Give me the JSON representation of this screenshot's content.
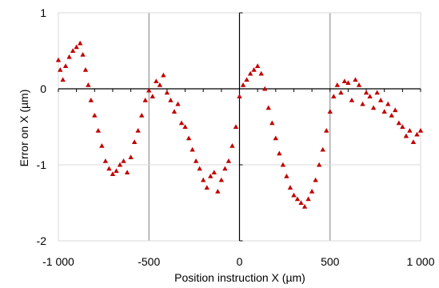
{
  "chart_data": {
    "type": "scatter",
    "title": "",
    "xlabel": "Position instruction X (µm)",
    "ylabel": "Error on X (µm)",
    "xlim": [
      -1000,
      1000
    ],
    "ylim": [
      -2,
      1
    ],
    "x_ticks": [
      -1000,
      -500,
      0,
      500,
      1000
    ],
    "x_tick_labels": [
      "-1 000",
      "-500",
      "0",
      "500",
      "1 000"
    ],
    "y_ticks": [
      -2,
      -1,
      0,
      1
    ],
    "y_tick_labels": [
      "-2",
      "-1",
      "0",
      "1"
    ],
    "grid": true,
    "legend": "none",
    "marker": "triangle",
    "marker_color": "#C00000",
    "series": [
      {
        "points": [
          {
            "x": -1000,
            "y": 0.38
          },
          {
            "x": -990,
            "y": 0.25
          },
          {
            "x": -975,
            "y": 0.12
          },
          {
            "x": -960,
            "y": 0.3
          },
          {
            "x": -940,
            "y": 0.42
          },
          {
            "x": -920,
            "y": 0.5
          },
          {
            "x": -900,
            "y": 0.55
          },
          {
            "x": -880,
            "y": 0.6
          },
          {
            "x": -865,
            "y": 0.45
          },
          {
            "x": -850,
            "y": 0.25
          },
          {
            "x": -835,
            "y": 0.05
          },
          {
            "x": -820,
            "y": -0.15
          },
          {
            "x": -800,
            "y": -0.35
          },
          {
            "x": -780,
            "y": -0.55
          },
          {
            "x": -760,
            "y": -0.75
          },
          {
            "x": -740,
            "y": -0.95
          },
          {
            "x": -720,
            "y": -1.05
          },
          {
            "x": -700,
            "y": -1.12
          },
          {
            "x": -680,
            "y": -1.08
          },
          {
            "x": -660,
            "y": -1.0
          },
          {
            "x": -640,
            "y": -0.95
          },
          {
            "x": -620,
            "y": -1.1
          },
          {
            "x": -600,
            "y": -0.9
          },
          {
            "x": -580,
            "y": -0.7
          },
          {
            "x": -560,
            "y": -0.55
          },
          {
            "x": -540,
            "y": -0.35
          },
          {
            "x": -520,
            "y": -0.15
          },
          {
            "x": -500,
            "y": -0.02
          },
          {
            "x": -480,
            "y": -0.1
          },
          {
            "x": -460,
            "y": 0.1
          },
          {
            "x": -440,
            "y": 0.05
          },
          {
            "x": -420,
            "y": 0.18
          },
          {
            "x": -400,
            "y": -0.05
          },
          {
            "x": -380,
            "y": -0.15
          },
          {
            "x": -360,
            "y": -0.3
          },
          {
            "x": -340,
            "y": -0.2
          },
          {
            "x": -320,
            "y": -0.45
          },
          {
            "x": -300,
            "y": -0.5
          },
          {
            "x": -280,
            "y": -0.65
          },
          {
            "x": -260,
            "y": -0.8
          },
          {
            "x": -240,
            "y": -0.95
          },
          {
            "x": -220,
            "y": -1.05
          },
          {
            "x": -200,
            "y": -1.2
          },
          {
            "x": -180,
            "y": -1.3
          },
          {
            "x": -160,
            "y": -1.15
          },
          {
            "x": -140,
            "y": -1.1
          },
          {
            "x": -120,
            "y": -1.35
          },
          {
            "x": -100,
            "y": -1.2
          },
          {
            "x": -80,
            "y": -1.05
          },
          {
            "x": -60,
            "y": -0.95
          },
          {
            "x": -40,
            "y": -0.75
          },
          {
            "x": -20,
            "y": -0.5
          },
          {
            "x": 0,
            "y": -0.1
          },
          {
            "x": 20,
            "y": 0.05
          },
          {
            "x": 40,
            "y": 0.12
          },
          {
            "x": 60,
            "y": 0.2
          },
          {
            "x": 80,
            "y": 0.25
          },
          {
            "x": 100,
            "y": 0.3
          },
          {
            "x": 120,
            "y": 0.2
          },
          {
            "x": 140,
            "y": 0.0
          },
          {
            "x": 160,
            "y": -0.25
          },
          {
            "x": 180,
            "y": -0.45
          },
          {
            "x": 200,
            "y": -0.65
          },
          {
            "x": 220,
            "y": -0.85
          },
          {
            "x": 240,
            "y": -1.0
          },
          {
            "x": 260,
            "y": -1.15
          },
          {
            "x": 280,
            "y": -1.3
          },
          {
            "x": 300,
            "y": -1.4
          },
          {
            "x": 320,
            "y": -1.45
          },
          {
            "x": 340,
            "y": -1.5
          },
          {
            "x": 360,
            "y": -1.55
          },
          {
            "x": 380,
            "y": -1.45
          },
          {
            "x": 400,
            "y": -1.35
          },
          {
            "x": 420,
            "y": -1.2
          },
          {
            "x": 440,
            "y": -1.0
          },
          {
            "x": 460,
            "y": -0.8
          },
          {
            "x": 480,
            "y": -0.55
          },
          {
            "x": 500,
            "y": -0.3
          },
          {
            "x": 520,
            "y": -0.1
          },
          {
            "x": 540,
            "y": 0.05
          },
          {
            "x": 560,
            "y": -0.05
          },
          {
            "x": 580,
            "y": 0.1
          },
          {
            "x": 600,
            "y": 0.08
          },
          {
            "x": 620,
            "y": -0.15
          },
          {
            "x": 640,
            "y": 0.12
          },
          {
            "x": 660,
            "y": 0.05
          },
          {
            "x": 680,
            "y": -0.2
          },
          {
            "x": 700,
            "y": -0.05
          },
          {
            "x": 720,
            "y": -0.1
          },
          {
            "x": 740,
            "y": -0.25
          },
          {
            "x": 760,
            "y": -0.05
          },
          {
            "x": 780,
            "y": -0.15
          },
          {
            "x": 800,
            "y": -0.3
          },
          {
            "x": 820,
            "y": -0.2
          },
          {
            "x": 840,
            "y": -0.35
          },
          {
            "x": 860,
            "y": -0.28
          },
          {
            "x": 880,
            "y": -0.45
          },
          {
            "x": 900,
            "y": -0.5
          },
          {
            "x": 920,
            "y": -0.62
          },
          {
            "x": 940,
            "y": -0.55
          },
          {
            "x": 960,
            "y": -0.7
          },
          {
            "x": 980,
            "y": -0.6
          },
          {
            "x": 1000,
            "y": -0.55
          }
        ]
      }
    ]
  }
}
